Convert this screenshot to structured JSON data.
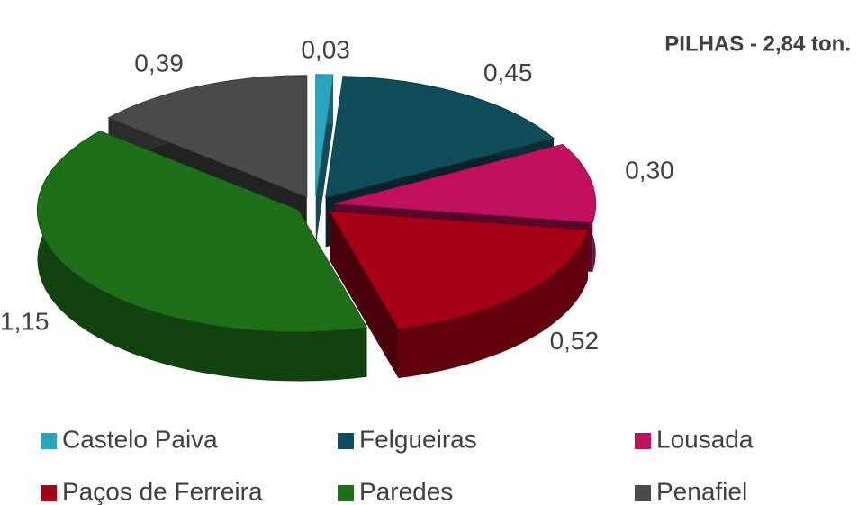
{
  "chart_data": {
    "type": "pie",
    "title": "PILHAS - 2,84 ton.",
    "categories": [
      "Castelo Paiva",
      "Felgueiras",
      "Lousada",
      "Paços de Ferreira",
      "Paredes",
      "Penafiel"
    ],
    "values": [
      0.03,
      0.45,
      0.3,
      0.52,
      1.15,
      0.39
    ],
    "value_labels": [
      "0,03",
      "0,45",
      "0,30",
      "0,52",
      "1,15",
      "0,39"
    ],
    "colors": [
      "#2aa5c0",
      "#0f4d5a",
      "#c0105e",
      "#a50016",
      "#1e6e1a",
      "#4a4a4a"
    ]
  }
}
